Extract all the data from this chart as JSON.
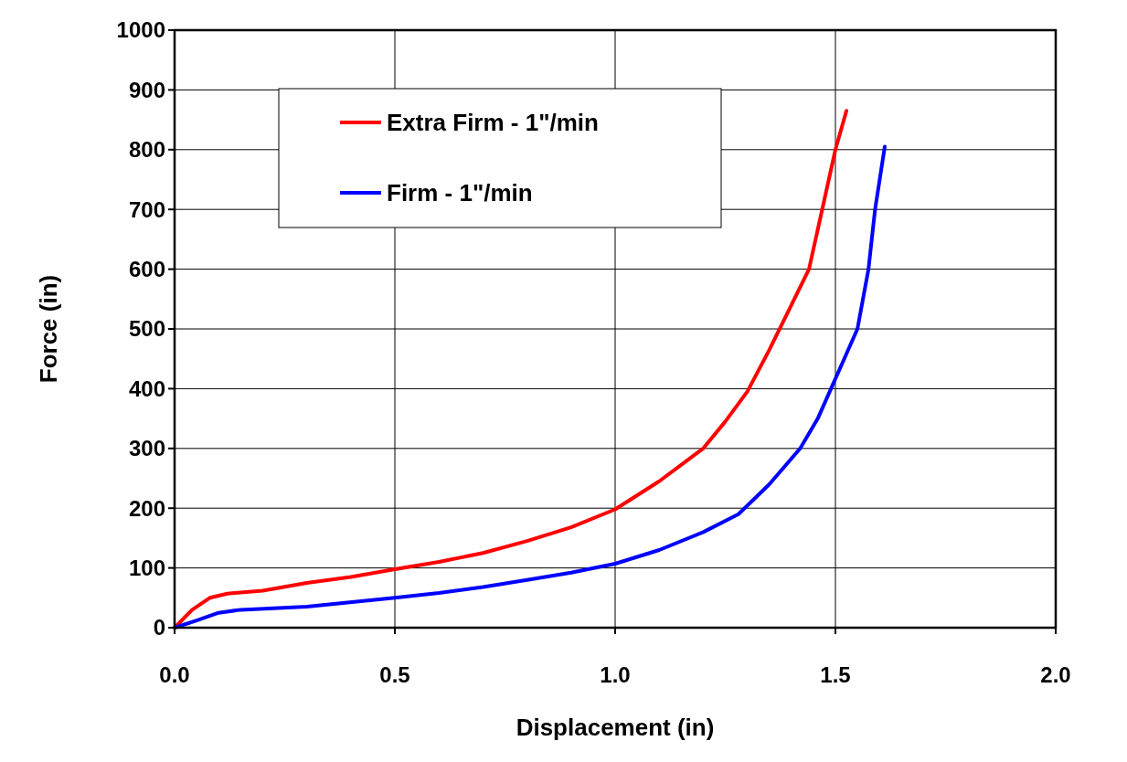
{
  "chart_data": {
    "type": "line",
    "xlabel": "Displacement (in)",
    "ylabel": "Force (in)",
    "xlim": [
      0,
      2
    ],
    "ylim": [
      0,
      1000
    ],
    "xticks": [
      {
        "value": 0,
        "label": "0.0"
      },
      0.5,
      {
        "value": 1,
        "label": "1.0"
      },
      1.5,
      {
        "value": 2,
        "label": "2.0"
      }
    ],
    "yticks": [
      0,
      100,
      200,
      300,
      400,
      500,
      600,
      700,
      800,
      900,
      1000
    ],
    "grid": true,
    "legend": "top left",
    "marker": "none",
    "line_style": "solid",
    "series": [
      {
        "name": "Extra Firm - 1\"/min",
        "color": "#ff0000",
        "x": [
          0,
          0.04,
          0.08,
          0.12,
          0.2,
          0.3,
          0.4,
          0.5,
          0.6,
          0.7,
          0.8,
          0.9,
          1.0,
          1.1,
          1.2,
          1.25,
          1.3,
          1.35,
          1.4,
          1.44,
          1.47,
          1.5,
          1.525
        ],
        "values": [
          0,
          30,
          50,
          57,
          62,
          75,
          85,
          98,
          110,
          125,
          145,
          168,
          198,
          245,
          300,
          345,
          395,
          465,
          540,
          600,
          700,
          800,
          865
        ]
      },
      {
        "name": "Firm - 1\"/min",
        "color": "#0000ff",
        "x": [
          0,
          0.05,
          0.1,
          0.15,
          0.3,
          0.5,
          0.6,
          0.7,
          0.8,
          0.9,
          1.0,
          1.1,
          1.2,
          1.28,
          1.35,
          1.42,
          1.46,
          1.49,
          1.52,
          1.55,
          1.575,
          1.59,
          1.612
        ],
        "values": [
          0,
          12,
          25,
          30,
          35,
          50,
          58,
          68,
          80,
          92,
          107,
          130,
          160,
          190,
          240,
          300,
          350,
          400,
          450,
          500,
          600,
          700,
          805
        ]
      }
    ]
  }
}
